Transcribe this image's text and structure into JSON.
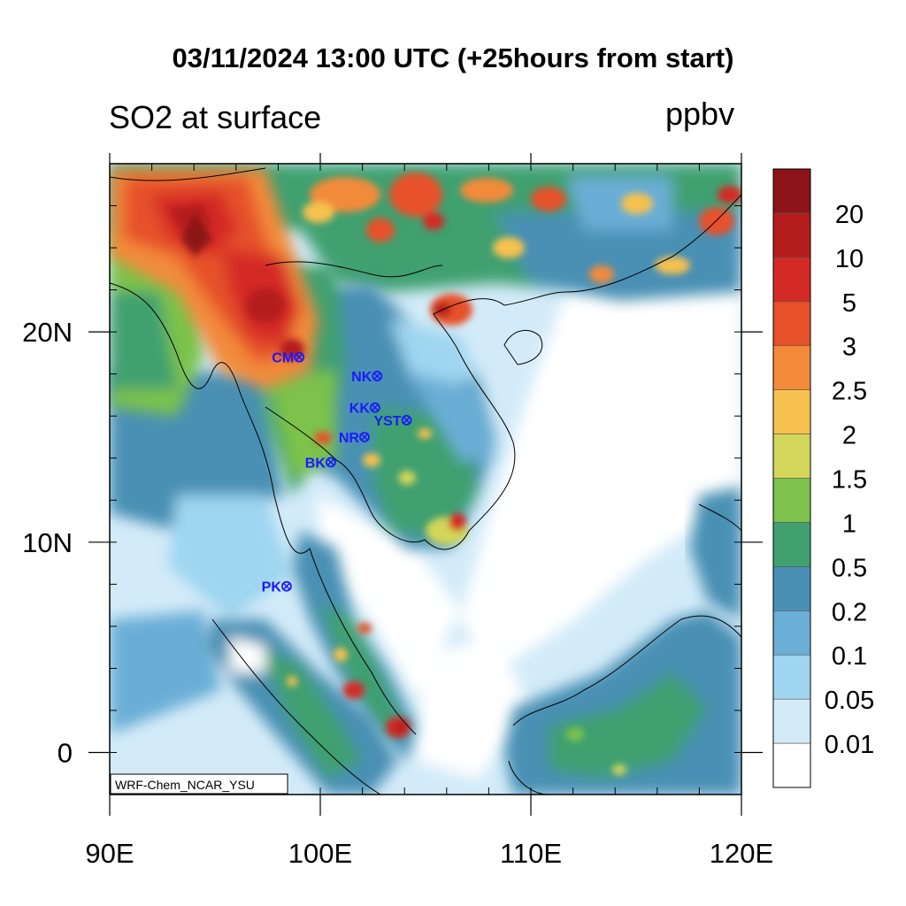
{
  "title": "03/11/2024 13:00 UTC (+25hours from start)",
  "variable_label": "SO2 at surface",
  "units_label": "ppbv",
  "model_label": "WRF-Chem_NCAR_YSU",
  "map": {
    "lon_range": [
      90,
      120
    ],
    "lat_range": [
      -2,
      28
    ],
    "x_ticks": [
      {
        "value": 90,
        "label": "90E"
      },
      {
        "value": 100,
        "label": "100E"
      },
      {
        "value": 110,
        "label": "110E"
      },
      {
        "value": 120,
        "label": "120E"
      }
    ],
    "y_ticks": [
      {
        "value": 0,
        "label": "0"
      },
      {
        "value": 10,
        "label": "10N"
      },
      {
        "value": 20,
        "label": "20N"
      }
    ],
    "stations": [
      {
        "code": "CM",
        "lon": 99.0,
        "lat": 18.8
      },
      {
        "code": "NK",
        "lon": 102.7,
        "lat": 17.9
      },
      {
        "code": "KK",
        "lon": 102.6,
        "lat": 16.4
      },
      {
        "code": "YST",
        "lon": 104.1,
        "lat": 15.8
      },
      {
        "code": "NR",
        "lon": 102.1,
        "lat": 15.0
      },
      {
        "code": "BK",
        "lon": 100.5,
        "lat": 13.8
      },
      {
        "code": "PK",
        "lon": 98.4,
        "lat": 7.9
      }
    ]
  },
  "colorbar": {
    "levels": [
      {
        "label": "0.01",
        "color": "#ffffff"
      },
      {
        "label": "0.05",
        "color": "#d3ebf9"
      },
      {
        "label": "0.1",
        "color": "#9fd5f0"
      },
      {
        "label": "0.2",
        "color": "#6baed6"
      },
      {
        "label": "0.5",
        "color": "#4a90b4"
      },
      {
        "label": "1",
        "color": "#41a070"
      },
      {
        "label": "1.5",
        "color": "#7cc24c"
      },
      {
        "label": "2",
        "color": "#d2d65a"
      },
      {
        "label": "2.5",
        "color": "#f6c14f"
      },
      {
        "label": "3",
        "color": "#f28a3a"
      },
      {
        "label": "5",
        "color": "#e6512a"
      },
      {
        "label": "10",
        "color": "#d42a26"
      },
      {
        "label": "20",
        "color": "#b51d1d"
      }
    ],
    "top_color": "#8c1418"
  }
}
